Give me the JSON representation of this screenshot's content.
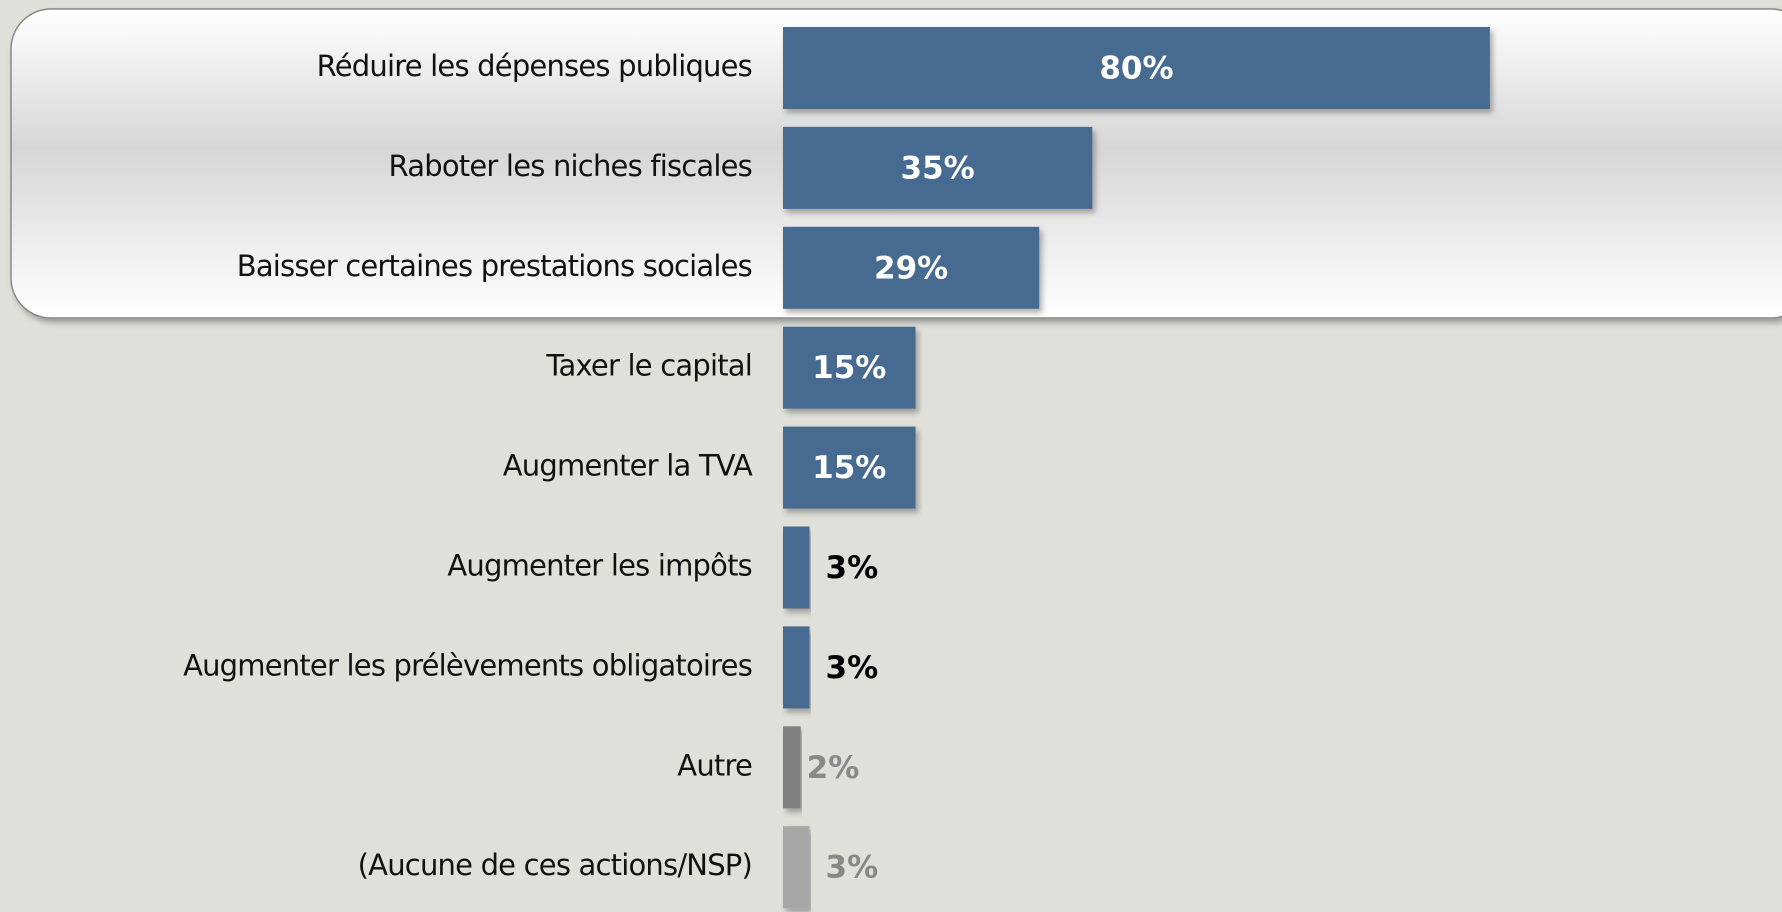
{
  "chart_data": {
    "type": "bar",
    "orientation": "horizontal",
    "categories": [
      "Réduire les dépenses publiques",
      "Raboter les niches fiscales",
      "Baisser certaines prestations sociales",
      "Taxer le capital",
      "Augmenter la TVA",
      "Augmenter les impôts",
      "Augmenter les prélèvements obligatoires",
      "Autre",
      "(Aucune de ces actions/NSP)"
    ],
    "values": [
      80,
      35,
      29,
      15,
      15,
      3,
      3,
      2,
      3
    ],
    "value_labels": [
      "80%",
      "35%",
      "29%",
      "15%",
      "15%",
      "3%",
      "3%",
      "2%",
      "3%"
    ],
    "colors": [
      "#476b91",
      "#476b91",
      "#476b91",
      "#476b91",
      "#476b91",
      "#476b91",
      "#476b91",
      "#808080",
      "#a6a6a6"
    ],
    "label_colors": [
      "#ffffff",
      "#ffffff",
      "#ffffff",
      "#ffffff",
      "#ffffff",
      "#000000",
      "#000000",
      "#888888",
      "#888888"
    ]
  }
}
